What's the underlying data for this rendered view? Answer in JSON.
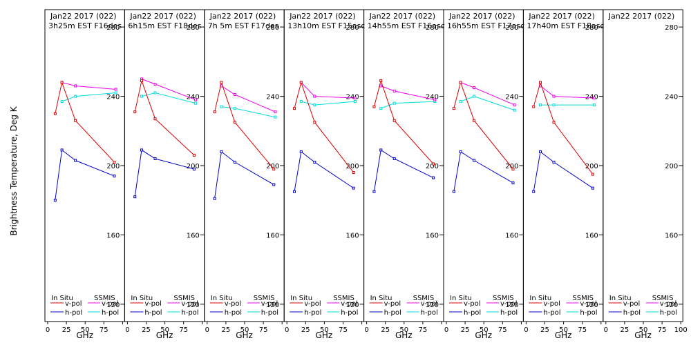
{
  "chart_data": {
    "type": "line",
    "ylabel": "Brightness Temperature, Deg K",
    "xlabel": "GHz",
    "ylim": [
      110,
      290
    ],
    "xlim": [
      0,
      100
    ],
    "yticks": [
      120,
      160,
      200,
      240,
      280
    ],
    "xticks": [
      0,
      25,
      50,
      75,
      100
    ],
    "xtick_labels": [
      "0",
      "25",
      "50",
      "75",
      "100"
    ],
    "legend": {
      "insitu_title": "In Situ",
      "ssmis_title": "SSMIS",
      "vpol": "v-pol",
      "hpol": "h-pol"
    },
    "colors": {
      "insitu_v": "#dd0000",
      "insitu_h": "#0000cc",
      "ssmis_v": "#ee00ee",
      "ssmis_h": "#00dddd"
    },
    "panels": [
      {
        "date": "Jan22 2017 (022)",
        "time": "3h25m EST F16des",
        "insitu_v": [
          [
            10,
            230
          ],
          [
            19,
            248
          ],
          [
            37,
            226
          ],
          [
            89,
            202
          ]
        ],
        "insitu_h": [
          [
            10,
            180
          ],
          [
            19,
            209
          ],
          [
            37,
            203
          ],
          [
            89,
            194
          ]
        ],
        "ssmis_v": [
          [
            19,
            248
          ],
          [
            37,
            246
          ],
          [
            91,
            244
          ]
        ],
        "ssmis_h": [
          [
            19,
            237
          ],
          [
            37,
            240
          ],
          [
            91,
            242
          ]
        ]
      },
      {
        "date": "Jan22 2017 (022)",
        "time": "6h15m EST F18des",
        "insitu_v": [
          [
            10,
            231
          ],
          [
            19,
            249
          ],
          [
            37,
            227
          ],
          [
            89,
            206
          ]
        ],
        "insitu_h": [
          [
            10,
            182
          ],
          [
            19,
            209
          ],
          [
            37,
            204
          ],
          [
            89,
            198
          ]
        ],
        "ssmis_v": [
          [
            19,
            250
          ],
          [
            37,
            247
          ],
          [
            91,
            238
          ]
        ],
        "ssmis_h": [
          [
            19,
            240
          ],
          [
            37,
            242
          ],
          [
            91,
            236
          ]
        ]
      },
      {
        "date": "Jan22 2017 (022)",
        "time": "7h 5m EST F17des",
        "insitu_v": [
          [
            10,
            231
          ],
          [
            19,
            248
          ],
          [
            37,
            225
          ],
          [
            89,
            198
          ]
        ],
        "insitu_h": [
          [
            10,
            181
          ],
          [
            19,
            208
          ],
          [
            37,
            202
          ],
          [
            89,
            189
          ]
        ],
        "ssmis_v": [
          [
            19,
            246
          ],
          [
            37,
            241
          ],
          [
            91,
            231
          ]
        ],
        "ssmis_h": [
          [
            19,
            234
          ],
          [
            37,
            233
          ],
          [
            91,
            228
          ]
        ]
      },
      {
        "date": "Jan22 2017 (022)",
        "time": "13h10m EST F15asc",
        "insitu_v": [
          [
            10,
            233
          ],
          [
            19,
            248
          ],
          [
            37,
            225
          ],
          [
            89,
            196
          ]
        ],
        "insitu_h": [
          [
            10,
            185
          ],
          [
            19,
            208
          ],
          [
            37,
            202
          ],
          [
            89,
            187
          ]
        ],
        "ssmis_v": [
          [
            19,
            248
          ],
          [
            37,
            240
          ],
          [
            91,
            239
          ]
        ],
        "ssmis_h": [
          [
            19,
            237
          ],
          [
            37,
            235
          ],
          [
            91,
            237
          ]
        ]
      },
      {
        "date": "Jan22 2017 (022)",
        "time": "14h55m EST F16asc",
        "insitu_v": [
          [
            10,
            234
          ],
          [
            19,
            249
          ],
          [
            37,
            226
          ],
          [
            89,
            201
          ]
        ],
        "insitu_h": [
          [
            10,
            185
          ],
          [
            19,
            209
          ],
          [
            37,
            204
          ],
          [
            89,
            193
          ]
        ],
        "ssmis_v": [
          [
            19,
            246
          ],
          [
            37,
            243
          ],
          [
            91,
            238
          ]
        ],
        "ssmis_h": [
          [
            19,
            233
          ],
          [
            37,
            236
          ],
          [
            91,
            237
          ]
        ]
      },
      {
        "date": "Jan22 2017 (022)",
        "time": "16h55m EST F17asc",
        "insitu_v": [
          [
            10,
            233
          ],
          [
            19,
            248
          ],
          [
            37,
            226
          ],
          [
            89,
            198
          ]
        ],
        "insitu_h": [
          [
            10,
            185
          ],
          [
            19,
            208
          ],
          [
            37,
            203
          ],
          [
            89,
            190
          ]
        ],
        "ssmis_v": [
          [
            19,
            248
          ],
          [
            37,
            245
          ],
          [
            91,
            235
          ]
        ],
        "ssmis_h": [
          [
            19,
            237
          ],
          [
            37,
            240
          ],
          [
            91,
            232
          ]
        ]
      },
      {
        "date": "Jan22 2017 (022)",
        "time": "17h40m EST F18asc",
        "insitu_v": [
          [
            10,
            234
          ],
          [
            19,
            248
          ],
          [
            37,
            225
          ],
          [
            89,
            195
          ]
        ],
        "insitu_h": [
          [
            10,
            185
          ],
          [
            19,
            208
          ],
          [
            37,
            202
          ],
          [
            89,
            187
          ]
        ],
        "ssmis_v": [
          [
            19,
            246
          ],
          [
            37,
            240
          ],
          [
            91,
            239
          ]
        ],
        "ssmis_h": [
          [
            19,
            235
          ],
          [
            37,
            235
          ],
          [
            91,
            235
          ]
        ]
      },
      {
        "date": "Jan22 2017 (022)",
        "time": "",
        "insitu_v": [],
        "insitu_h": [],
        "ssmis_v": [],
        "ssmis_h": []
      }
    ]
  }
}
